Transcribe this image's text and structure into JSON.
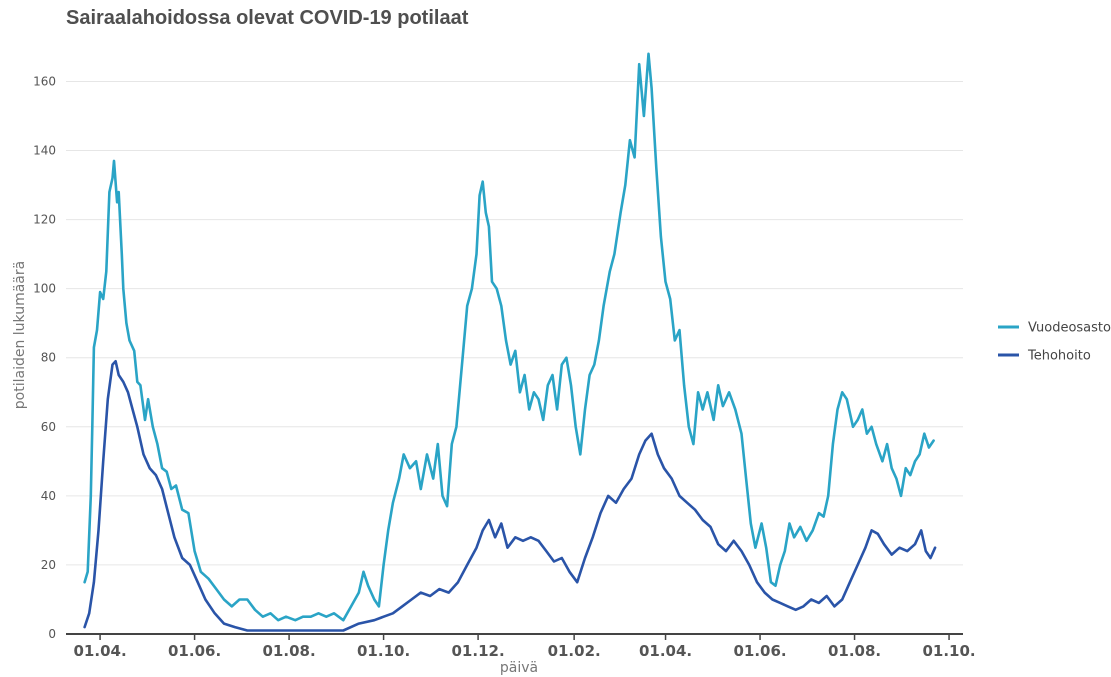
{
  "chart_data": {
    "type": "line",
    "title": "Sairaalahoidossa olevat COVID-19 potilaat",
    "xlabel": "päivä",
    "ylabel": "potilaiden lukumäärä",
    "ylim": [
      0,
      172
    ],
    "yticks": [
      0,
      20,
      40,
      60,
      80,
      100,
      120,
      140,
      160
    ],
    "xlim": [
      "2020-03-10",
      "2021-10-10"
    ],
    "xticks": [
      {
        "date": "2020-04-01",
        "label": "01.04."
      },
      {
        "date": "2020-06-01",
        "label": "01.06."
      },
      {
        "date": "2020-08-01",
        "label": "01.08."
      },
      {
        "date": "2020-10-01",
        "label": "01.10."
      },
      {
        "date": "2020-12-01",
        "label": "01.12."
      },
      {
        "date": "2021-02-01",
        "label": "01.02."
      },
      {
        "date": "2021-04-01",
        "label": "01.04."
      },
      {
        "date": "2021-06-01",
        "label": "01.06."
      },
      {
        "date": "2021-08-01",
        "label": "01.08."
      },
      {
        "date": "2021-10-01",
        "label": "01.10."
      }
    ],
    "grid": "horizontal",
    "legend_position": "right",
    "series": [
      {
        "name": "Vuodeosasto",
        "color": "#2aa4c6",
        "points": [
          [
            "2020-03-22",
            15
          ],
          [
            "2020-03-24",
            18
          ],
          [
            "2020-03-26",
            40
          ],
          [
            "2020-03-27",
            60
          ],
          [
            "2020-03-28",
            83
          ],
          [
            "2020-03-30",
            88
          ],
          [
            "2020-04-01",
            99
          ],
          [
            "2020-04-03",
            97
          ],
          [
            "2020-04-05",
            105
          ],
          [
            "2020-04-07",
            128
          ],
          [
            "2020-04-09",
            132
          ],
          [
            "2020-04-10",
            137
          ],
          [
            "2020-04-12",
            125
          ],
          [
            "2020-04-13",
            128
          ],
          [
            "2020-04-15",
            110
          ],
          [
            "2020-04-16",
            100
          ],
          [
            "2020-04-18",
            90
          ],
          [
            "2020-04-20",
            85
          ],
          [
            "2020-04-23",
            82
          ],
          [
            "2020-04-25",
            73
          ],
          [
            "2020-04-27",
            72
          ],
          [
            "2020-04-30",
            62
          ],
          [
            "2020-05-02",
            68
          ],
          [
            "2020-05-05",
            60
          ],
          [
            "2020-05-08",
            55
          ],
          [
            "2020-05-11",
            48
          ],
          [
            "2020-05-14",
            47
          ],
          [
            "2020-05-17",
            42
          ],
          [
            "2020-05-20",
            43
          ],
          [
            "2020-05-24",
            36
          ],
          [
            "2020-05-28",
            35
          ],
          [
            "2020-06-01",
            24
          ],
          [
            "2020-06-05",
            18
          ],
          [
            "2020-06-10",
            16
          ],
          [
            "2020-06-15",
            13
          ],
          [
            "2020-06-20",
            10
          ],
          [
            "2020-06-25",
            8
          ],
          [
            "2020-06-30",
            10
          ],
          [
            "2020-07-05",
            10
          ],
          [
            "2020-07-10",
            7
          ],
          [
            "2020-07-15",
            5
          ],
          [
            "2020-07-20",
            6
          ],
          [
            "2020-07-25",
            4
          ],
          [
            "2020-07-30",
            5
          ],
          [
            "2020-08-05",
            4
          ],
          [
            "2020-08-10",
            5
          ],
          [
            "2020-08-15",
            5
          ],
          [
            "2020-08-20",
            6
          ],
          [
            "2020-08-25",
            5
          ],
          [
            "2020-08-30",
            6
          ],
          [
            "2020-09-05",
            4
          ],
          [
            "2020-09-10",
            8
          ],
          [
            "2020-09-15",
            12
          ],
          [
            "2020-09-18",
            18
          ],
          [
            "2020-09-21",
            14
          ],
          [
            "2020-09-25",
            10
          ],
          [
            "2020-09-28",
            8
          ],
          [
            "2020-10-01",
            20
          ],
          [
            "2020-10-04",
            30
          ],
          [
            "2020-10-07",
            38
          ],
          [
            "2020-10-11",
            45
          ],
          [
            "2020-10-14",
            52
          ],
          [
            "2020-10-18",
            48
          ],
          [
            "2020-10-22",
            50
          ],
          [
            "2020-10-25",
            42
          ],
          [
            "2020-10-29",
            52
          ],
          [
            "2020-11-02",
            45
          ],
          [
            "2020-11-05",
            55
          ],
          [
            "2020-11-08",
            40
          ],
          [
            "2020-11-11",
            37
          ],
          [
            "2020-11-14",
            55
          ],
          [
            "2020-11-17",
            60
          ],
          [
            "2020-11-21",
            80
          ],
          [
            "2020-11-24",
            95
          ],
          [
            "2020-11-27",
            100
          ],
          [
            "2020-11-30",
            110
          ],
          [
            "2020-12-02",
            127
          ],
          [
            "2020-12-04",
            131
          ],
          [
            "2020-12-06",
            122
          ],
          [
            "2020-12-08",
            118
          ],
          [
            "2020-12-10",
            102
          ],
          [
            "2020-12-13",
            100
          ],
          [
            "2020-12-16",
            95
          ],
          [
            "2020-12-19",
            85
          ],
          [
            "2020-12-22",
            78
          ],
          [
            "2020-12-25",
            82
          ],
          [
            "2020-12-28",
            70
          ],
          [
            "2020-12-31",
            75
          ],
          [
            "2021-01-03",
            65
          ],
          [
            "2021-01-06",
            70
          ],
          [
            "2021-01-09",
            68
          ],
          [
            "2021-01-12",
            62
          ],
          [
            "2021-01-15",
            72
          ],
          [
            "2021-01-18",
            75
          ],
          [
            "2021-01-21",
            65
          ],
          [
            "2021-01-24",
            78
          ],
          [
            "2021-01-27",
            80
          ],
          [
            "2021-01-30",
            72
          ],
          [
            "2021-02-02",
            60
          ],
          [
            "2021-02-05",
            52
          ],
          [
            "2021-02-08",
            65
          ],
          [
            "2021-02-11",
            75
          ],
          [
            "2021-02-14",
            78
          ],
          [
            "2021-02-17",
            85
          ],
          [
            "2021-02-20",
            95
          ],
          [
            "2021-02-24",
            105
          ],
          [
            "2021-02-27",
            110
          ],
          [
            "2021-03-03",
            122
          ],
          [
            "2021-03-06",
            130
          ],
          [
            "2021-03-09",
            143
          ],
          [
            "2021-03-12",
            138
          ],
          [
            "2021-03-15",
            165
          ],
          [
            "2021-03-18",
            150
          ],
          [
            "2021-03-21",
            168
          ],
          [
            "2021-03-23",
            158
          ],
          [
            "2021-03-26",
            135
          ],
          [
            "2021-03-29",
            115
          ],
          [
            "2021-04-01",
            102
          ],
          [
            "2021-04-04",
            97
          ],
          [
            "2021-04-07",
            85
          ],
          [
            "2021-04-10",
            88
          ],
          [
            "2021-04-13",
            72
          ],
          [
            "2021-04-16",
            60
          ],
          [
            "2021-04-19",
            55
          ],
          [
            "2021-04-22",
            70
          ],
          [
            "2021-04-25",
            65
          ],
          [
            "2021-04-28",
            70
          ],
          [
            "2021-05-02",
            62
          ],
          [
            "2021-05-05",
            72
          ],
          [
            "2021-05-08",
            66
          ],
          [
            "2021-05-12",
            70
          ],
          [
            "2021-05-16",
            65
          ],
          [
            "2021-05-20",
            58
          ],
          [
            "2021-05-23",
            45
          ],
          [
            "2021-05-26",
            32
          ],
          [
            "2021-05-29",
            25
          ],
          [
            "2021-06-02",
            32
          ],
          [
            "2021-06-05",
            25
          ],
          [
            "2021-06-08",
            15
          ],
          [
            "2021-06-11",
            14
          ],
          [
            "2021-06-14",
            20
          ],
          [
            "2021-06-17",
            24
          ],
          [
            "2021-06-20",
            32
          ],
          [
            "2021-06-23",
            28
          ],
          [
            "2021-06-27",
            31
          ],
          [
            "2021-07-01",
            27
          ],
          [
            "2021-07-05",
            30
          ],
          [
            "2021-07-09",
            35
          ],
          [
            "2021-07-12",
            34
          ],
          [
            "2021-07-15",
            40
          ],
          [
            "2021-07-18",
            55
          ],
          [
            "2021-07-21",
            65
          ],
          [
            "2021-07-24",
            70
          ],
          [
            "2021-07-27",
            68
          ],
          [
            "2021-07-31",
            60
          ],
          [
            "2021-08-03",
            62
          ],
          [
            "2021-08-06",
            65
          ],
          [
            "2021-08-09",
            58
          ],
          [
            "2021-08-12",
            60
          ],
          [
            "2021-08-15",
            55
          ],
          [
            "2021-08-19",
            50
          ],
          [
            "2021-08-22",
            55
          ],
          [
            "2021-08-25",
            48
          ],
          [
            "2021-08-28",
            45
          ],
          [
            "2021-08-31",
            40
          ],
          [
            "2021-09-03",
            48
          ],
          [
            "2021-09-06",
            46
          ],
          [
            "2021-09-09",
            50
          ],
          [
            "2021-09-12",
            52
          ],
          [
            "2021-09-15",
            58
          ],
          [
            "2021-09-18",
            54
          ],
          [
            "2021-09-21",
            56
          ]
        ]
      },
      {
        "name": "Tehohoito",
        "color": "#2a54a8",
        "points": [
          [
            "2020-03-22",
            2
          ],
          [
            "2020-03-25",
            6
          ],
          [
            "2020-03-28",
            15
          ],
          [
            "2020-03-31",
            30
          ],
          [
            "2020-04-03",
            50
          ],
          [
            "2020-04-06",
            68
          ],
          [
            "2020-04-09",
            78
          ],
          [
            "2020-04-11",
            79
          ],
          [
            "2020-04-13",
            75
          ],
          [
            "2020-04-16",
            73
          ],
          [
            "2020-04-19",
            70
          ],
          [
            "2020-04-22",
            65
          ],
          [
            "2020-04-25",
            60
          ],
          [
            "2020-04-29",
            52
          ],
          [
            "2020-05-03",
            48
          ],
          [
            "2020-05-07",
            46
          ],
          [
            "2020-05-11",
            42
          ],
          [
            "2020-05-15",
            35
          ],
          [
            "2020-05-19",
            28
          ],
          [
            "2020-05-24",
            22
          ],
          [
            "2020-05-29",
            20
          ],
          [
            "2020-06-03",
            15
          ],
          [
            "2020-06-08",
            10
          ],
          [
            "2020-06-14",
            6
          ],
          [
            "2020-06-20",
            3
          ],
          [
            "2020-06-27",
            2
          ],
          [
            "2020-07-05",
            1
          ],
          [
            "2020-07-15",
            1
          ],
          [
            "2020-07-25",
            1
          ],
          [
            "2020-08-05",
            1
          ],
          [
            "2020-08-15",
            1
          ],
          [
            "2020-08-25",
            1
          ],
          [
            "2020-09-05",
            1
          ],
          [
            "2020-09-15",
            3
          ],
          [
            "2020-09-25",
            4
          ],
          [
            "2020-10-01",
            5
          ],
          [
            "2020-10-07",
            6
          ],
          [
            "2020-10-13",
            8
          ],
          [
            "2020-10-19",
            10
          ],
          [
            "2020-10-25",
            12
          ],
          [
            "2020-10-31",
            11
          ],
          [
            "2020-11-06",
            13
          ],
          [
            "2020-11-12",
            12
          ],
          [
            "2020-11-18",
            15
          ],
          [
            "2020-11-24",
            20
          ],
          [
            "2020-11-30",
            25
          ],
          [
            "2020-12-04",
            30
          ],
          [
            "2020-12-08",
            33
          ],
          [
            "2020-12-12",
            28
          ],
          [
            "2020-12-16",
            32
          ],
          [
            "2020-12-20",
            25
          ],
          [
            "2020-12-25",
            28
          ],
          [
            "2020-12-30",
            27
          ],
          [
            "2021-01-04",
            28
          ],
          [
            "2021-01-09",
            27
          ],
          [
            "2021-01-14",
            24
          ],
          [
            "2021-01-19",
            21
          ],
          [
            "2021-01-24",
            22
          ],
          [
            "2021-01-29",
            18
          ],
          [
            "2021-02-03",
            15
          ],
          [
            "2021-02-08",
            22
          ],
          [
            "2021-02-13",
            28
          ],
          [
            "2021-02-18",
            35
          ],
          [
            "2021-02-23",
            40
          ],
          [
            "2021-02-28",
            38
          ],
          [
            "2021-03-05",
            42
          ],
          [
            "2021-03-10",
            45
          ],
          [
            "2021-03-15",
            52
          ],
          [
            "2021-03-19",
            56
          ],
          [
            "2021-03-23",
            58
          ],
          [
            "2021-03-27",
            52
          ],
          [
            "2021-03-31",
            48
          ],
          [
            "2021-04-05",
            45
          ],
          [
            "2021-04-10",
            40
          ],
          [
            "2021-04-15",
            38
          ],
          [
            "2021-04-20",
            36
          ],
          [
            "2021-04-25",
            33
          ],
          [
            "2021-04-30",
            31
          ],
          [
            "2021-05-05",
            26
          ],
          [
            "2021-05-10",
            24
          ],
          [
            "2021-05-15",
            27
          ],
          [
            "2021-05-20",
            24
          ],
          [
            "2021-05-25",
            20
          ],
          [
            "2021-05-30",
            15
          ],
          [
            "2021-06-04",
            12
          ],
          [
            "2021-06-09",
            10
          ],
          [
            "2021-06-14",
            9
          ],
          [
            "2021-06-19",
            8
          ],
          [
            "2021-06-24",
            7
          ],
          [
            "2021-06-29",
            8
          ],
          [
            "2021-07-04",
            10
          ],
          [
            "2021-07-09",
            9
          ],
          [
            "2021-07-14",
            11
          ],
          [
            "2021-07-19",
            8
          ],
          [
            "2021-07-24",
            10
          ],
          [
            "2021-07-29",
            15
          ],
          [
            "2021-08-03",
            20
          ],
          [
            "2021-08-08",
            25
          ],
          [
            "2021-08-12",
            30
          ],
          [
            "2021-08-16",
            29
          ],
          [
            "2021-08-20",
            26
          ],
          [
            "2021-08-25",
            23
          ],
          [
            "2021-08-30",
            25
          ],
          [
            "2021-09-04",
            24
          ],
          [
            "2021-09-09",
            26
          ],
          [
            "2021-09-13",
            30
          ],
          [
            "2021-09-16",
            24
          ],
          [
            "2021-09-19",
            22
          ],
          [
            "2021-09-22",
            25
          ]
        ]
      }
    ]
  }
}
